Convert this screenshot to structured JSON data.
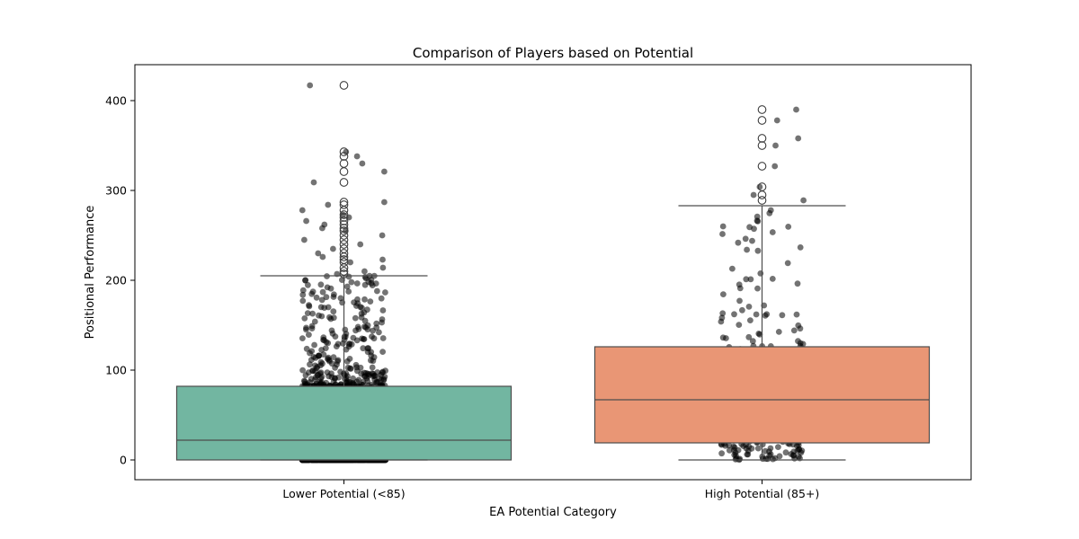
{
  "chart_data": {
    "type": "boxplot",
    "title": "Comparison of Players based on Potential",
    "xlabel": "EA Potential Category",
    "ylabel": "Positional Performance",
    "ylim": [
      -22,
      440
    ],
    "yticks": [
      0,
      100,
      200,
      300,
      400
    ],
    "grid": false,
    "categories": [
      "Lower Potential (<85)",
      "High Potential (85+)"
    ],
    "boxes": [
      {
        "category": "Lower Potential (<85)",
        "color": "#72b6a1",
        "whisker_low": 0,
        "q1": 0,
        "median": 22,
        "q3": 82,
        "whisker_high": 205,
        "outliers": [
          207,
          210,
          214,
          220,
          223,
          226,
          230,
          235,
          240,
          245,
          250,
          255,
          258,
          262,
          266,
          270,
          273,
          278,
          284,
          287,
          309,
          321,
          330,
          338,
          343,
          417
        ]
      },
      {
        "category": "High Potential (85+)",
        "color": "#e99675",
        "whisker_low": 0,
        "q1": 19,
        "median": 67,
        "q3": 126,
        "whisker_high": 283,
        "outliers": [
          289,
          295,
          304,
          327,
          350,
          358,
          378,
          390
        ]
      }
    ],
    "strip": {
      "color": "#000000",
      "opacity": 0.55,
      "n_points": [
        1400,
        200
      ]
    }
  }
}
